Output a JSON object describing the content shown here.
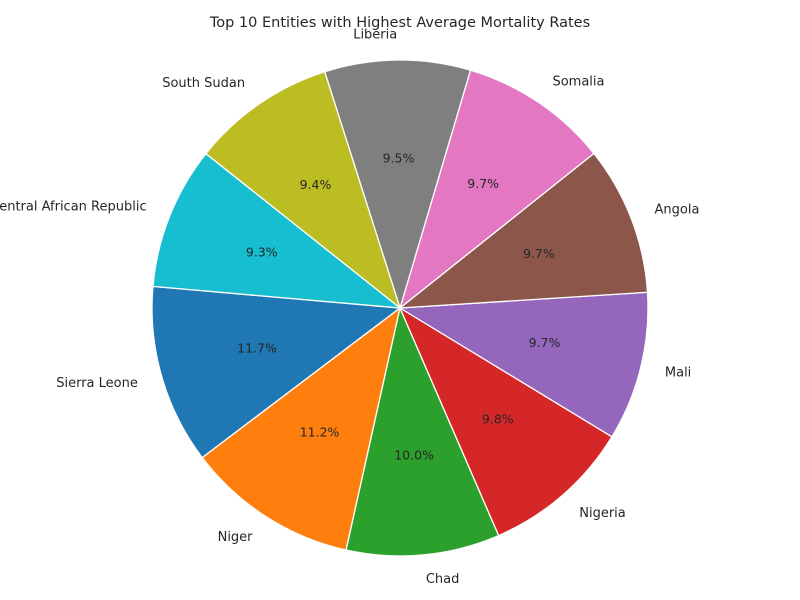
{
  "chart_data": {
    "type": "pie",
    "title": "Top 10 Entities with Highest Average Mortality Rates",
    "start_angle_deg": 175,
    "direction": "counterclockwise",
    "slices": [
      {
        "label": "Sierra Leone",
        "pct": 11.7,
        "pct_label": "11.7%",
        "color": "#1f77b4"
      },
      {
        "label": "Niger",
        "pct": 11.2,
        "pct_label": "11.2%",
        "color": "#ff7f0e"
      },
      {
        "label": "Chad",
        "pct": 10.0,
        "pct_label": "10.0%",
        "color": "#2ca02c"
      },
      {
        "label": "Nigeria",
        "pct": 9.8,
        "pct_label": "9.8%",
        "color": "#d62728"
      },
      {
        "label": "Mali",
        "pct": 9.7,
        "pct_label": "9.7%",
        "color": "#9467bd"
      },
      {
        "label": "Angola",
        "pct": 9.7,
        "pct_label": "9.7%",
        "color": "#8c564b"
      },
      {
        "label": "Somalia",
        "pct": 9.7,
        "pct_label": "9.7%",
        "color": "#e377c2"
      },
      {
        "label": "Liberia",
        "pct": 9.5,
        "pct_label": "9.5%",
        "color": "#7f7f7f"
      },
      {
        "label": "South Sudan",
        "pct": 9.4,
        "pct_label": "9.4%",
        "color": "#bcbd22"
      },
      {
        "label": "Central African Republic",
        "pct": 9.3,
        "pct_label": "9.3%",
        "color": "#17becf"
      }
    ]
  }
}
